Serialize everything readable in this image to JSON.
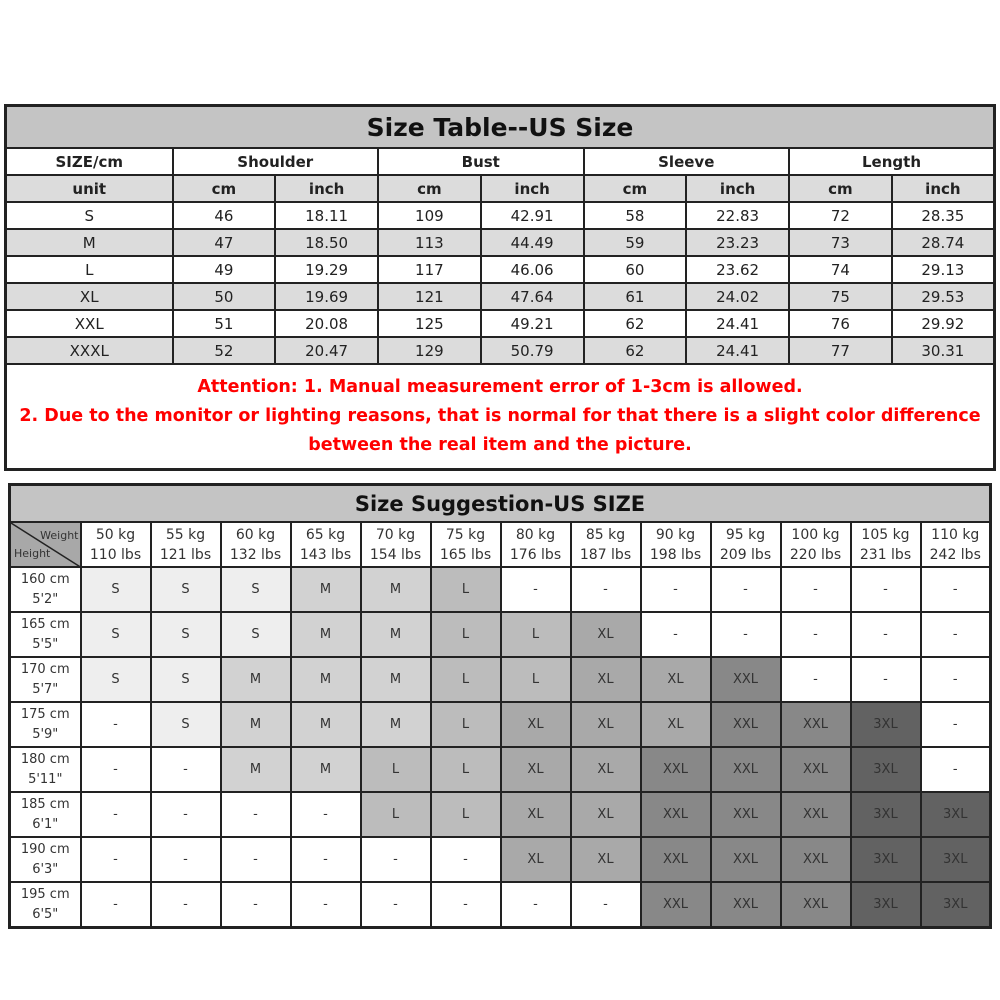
{
  "size_table": {
    "title": "Size Table--US Size",
    "header": [
      "SIZE/cm",
      "Shoulder",
      "Bust",
      "Sleeve",
      "Length"
    ],
    "units": [
      "unit",
      "cm",
      "inch",
      "cm",
      "inch",
      "cm",
      "inch",
      "cm",
      "inch"
    ],
    "rows": [
      [
        "S",
        "46",
        "18.11",
        "109",
        "42.91",
        "58",
        "22.83",
        "72",
        "28.35"
      ],
      [
        "M",
        "47",
        "18.50",
        "113",
        "44.49",
        "59",
        "23.23",
        "73",
        "28.74"
      ],
      [
        "L",
        "49",
        "19.29",
        "117",
        "46.06",
        "60",
        "23.62",
        "74",
        "29.13"
      ],
      [
        "XL",
        "50",
        "19.69",
        "121",
        "47.64",
        "61",
        "24.02",
        "75",
        "29.53"
      ],
      [
        "XXL",
        "51",
        "20.08",
        "125",
        "49.21",
        "62",
        "24.41",
        "76",
        "29.92"
      ],
      [
        "XXXL",
        "52",
        "20.47",
        "129",
        "50.79",
        "62",
        "24.41",
        "77",
        "30.31"
      ]
    ],
    "notes": [
      "Attention:  1. Manual measurement error of 1-3cm is allowed.",
      "2. Due to the monitor or lighting reasons, that is normal for that there is a slight color difference between the real item and the picture."
    ]
  },
  "size_suggestion": {
    "title": "Size Suggestion-US SIZE",
    "corner_weight": "Weight",
    "corner_height": "Height",
    "weights": [
      [
        "50 kg",
        "110 lbs"
      ],
      [
        "55 kg",
        "121 lbs"
      ],
      [
        "60 kg",
        "132 lbs"
      ],
      [
        "65 kg",
        "143 lbs"
      ],
      [
        "70 kg",
        "154 lbs"
      ],
      [
        "75 kg",
        "165 lbs"
      ],
      [
        "80 kg",
        "176 lbs"
      ],
      [
        "85 kg",
        "187 lbs"
      ],
      [
        "90 kg",
        "198 lbs"
      ],
      [
        "95 kg",
        "209 lbs"
      ],
      [
        "100 kg",
        "220 lbs"
      ],
      [
        "105 kg",
        "231 lbs"
      ],
      [
        "110 kg",
        "242 lbs"
      ]
    ],
    "heights": [
      [
        "160 cm",
        "5'2\""
      ],
      [
        "165 cm",
        "5'5\""
      ],
      [
        "170 cm",
        "5'7\""
      ],
      [
        "175 cm",
        "5'9\""
      ],
      [
        "180 cm",
        "5'11\""
      ],
      [
        "185 cm",
        "6'1\""
      ],
      [
        "190 cm",
        "6'3\""
      ],
      [
        "195 cm",
        "6'5\""
      ]
    ],
    "grid": [
      [
        "S",
        "S",
        "S",
        "M",
        "M",
        "L",
        "-",
        "-",
        "-",
        "-",
        "-",
        "-",
        "-"
      ],
      [
        "S",
        "S",
        "S",
        "M",
        "M",
        "L",
        "L",
        "XL",
        "-",
        "-",
        "-",
        "-",
        "-"
      ],
      [
        "S",
        "S",
        "M",
        "M",
        "M",
        "L",
        "L",
        "XL",
        "XL",
        "XXL",
        "-",
        "-",
        "-"
      ],
      [
        "-",
        "S",
        "M",
        "M",
        "M",
        "L",
        "XL",
        "XL",
        "XL",
        "XXL",
        "XXL",
        "3XL",
        "-"
      ],
      [
        "-",
        "-",
        "M",
        "M",
        "L",
        "L",
        "XL",
        "XL",
        "XXL",
        "XXL",
        "XXL",
        "3XL",
        "-"
      ],
      [
        "-",
        "-",
        "-",
        "-",
        "L",
        "L",
        "XL",
        "XL",
        "XXL",
        "XXL",
        "XXL",
        "3XL",
        "3XL"
      ],
      [
        "-",
        "-",
        "-",
        "-",
        "-",
        "-",
        "XL",
        "XL",
        "XXL",
        "XXL",
        "XXL",
        "3XL",
        "3XL"
      ],
      [
        "-",
        "-",
        "-",
        "-",
        "-",
        "-",
        "-",
        "-",
        "XXL",
        "XXL",
        "XXL",
        "3XL",
        "3XL"
      ]
    ],
    "shade_colors": {
      "S": "#eeeeee",
      "M": "#d2d2d2",
      "L": "#bcbcbc",
      "XL": "#a9a9a9",
      "XXL": "#888888",
      "3XL": "#626262",
      "-": "#ffffff"
    }
  }
}
